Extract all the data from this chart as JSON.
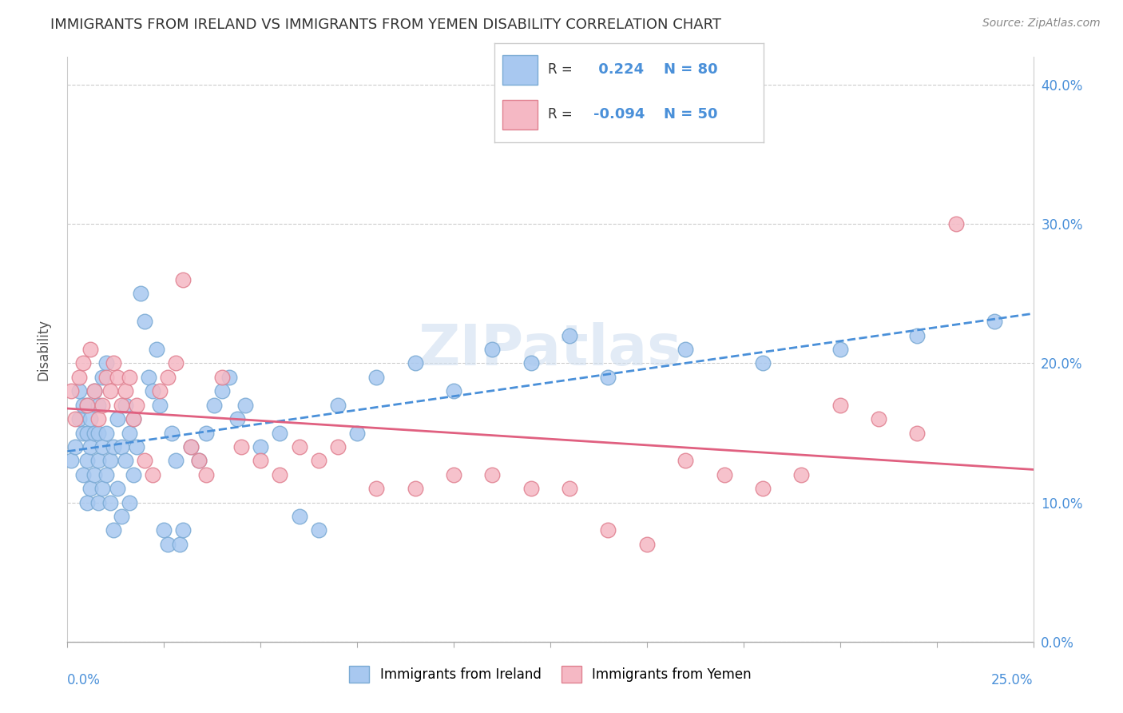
{
  "title": "IMMIGRANTS FROM IRELAND VS IMMIGRANTS FROM YEMEN DISABILITY CORRELATION CHART",
  "source": "Source: ZipAtlas.com",
  "ylabel": "Disability",
  "ytick_vals": [
    0.0,
    0.1,
    0.2,
    0.3,
    0.4
  ],
  "xlim": [
    0.0,
    0.25
  ],
  "ylim": [
    0.0,
    0.42
  ],
  "r_ireland": 0.224,
  "n_ireland": 80,
  "r_yemen": -0.094,
  "n_yemen": 50,
  "ireland_color": "#a8c8f0",
  "ireland_edge": "#7aaad4",
  "ireland_line_color": "#4a90d9",
  "yemen_color": "#f5b8c4",
  "yemen_edge": "#e08090",
  "yemen_line_color": "#e06080",
  "watermark": "ZIPatlas",
  "watermark_color": "#d0dff0",
  "ireland_scatter_x": [
    0.001,
    0.002,
    0.003,
    0.003,
    0.004,
    0.004,
    0.004,
    0.005,
    0.005,
    0.005,
    0.005,
    0.006,
    0.006,
    0.006,
    0.007,
    0.007,
    0.007,
    0.008,
    0.008,
    0.008,
    0.008,
    0.009,
    0.009,
    0.009,
    0.01,
    0.01,
    0.01,
    0.011,
    0.011,
    0.012,
    0.012,
    0.013,
    0.013,
    0.014,
    0.014,
    0.015,
    0.015,
    0.016,
    0.016,
    0.017,
    0.017,
    0.018,
    0.019,
    0.02,
    0.021,
    0.022,
    0.023,
    0.024,
    0.025,
    0.026,
    0.027,
    0.028,
    0.029,
    0.03,
    0.032,
    0.034,
    0.036,
    0.038,
    0.04,
    0.042,
    0.044,
    0.046,
    0.05,
    0.055,
    0.06,
    0.065,
    0.07,
    0.075,
    0.08,
    0.09,
    0.1,
    0.11,
    0.12,
    0.13,
    0.14,
    0.16,
    0.18,
    0.2,
    0.22,
    0.24
  ],
  "ireland_scatter_y": [
    0.13,
    0.14,
    0.16,
    0.18,
    0.12,
    0.15,
    0.17,
    0.1,
    0.13,
    0.15,
    0.17,
    0.11,
    0.14,
    0.16,
    0.12,
    0.15,
    0.18,
    0.1,
    0.13,
    0.15,
    0.17,
    0.11,
    0.14,
    0.19,
    0.12,
    0.15,
    0.2,
    0.1,
    0.13,
    0.08,
    0.14,
    0.11,
    0.16,
    0.09,
    0.14,
    0.13,
    0.17,
    0.1,
    0.15,
    0.12,
    0.16,
    0.14,
    0.25,
    0.23,
    0.19,
    0.18,
    0.21,
    0.17,
    0.08,
    0.07,
    0.15,
    0.13,
    0.07,
    0.08,
    0.14,
    0.13,
    0.15,
    0.17,
    0.18,
    0.19,
    0.16,
    0.17,
    0.14,
    0.15,
    0.09,
    0.08,
    0.17,
    0.15,
    0.19,
    0.2,
    0.18,
    0.21,
    0.2,
    0.22,
    0.19,
    0.21,
    0.2,
    0.21,
    0.22,
    0.23
  ],
  "yemen_scatter_x": [
    0.001,
    0.002,
    0.003,
    0.004,
    0.005,
    0.006,
    0.007,
    0.008,
    0.009,
    0.01,
    0.011,
    0.012,
    0.013,
    0.014,
    0.015,
    0.016,
    0.017,
    0.018,
    0.02,
    0.022,
    0.024,
    0.026,
    0.028,
    0.03,
    0.032,
    0.034,
    0.036,
    0.04,
    0.045,
    0.05,
    0.055,
    0.06,
    0.065,
    0.07,
    0.08,
    0.09,
    0.1,
    0.11,
    0.12,
    0.13,
    0.14,
    0.15,
    0.16,
    0.17,
    0.18,
    0.19,
    0.2,
    0.21,
    0.22,
    0.23
  ],
  "yemen_scatter_y": [
    0.18,
    0.16,
    0.19,
    0.2,
    0.17,
    0.21,
    0.18,
    0.16,
    0.17,
    0.19,
    0.18,
    0.2,
    0.19,
    0.17,
    0.18,
    0.19,
    0.16,
    0.17,
    0.13,
    0.12,
    0.18,
    0.19,
    0.2,
    0.26,
    0.14,
    0.13,
    0.12,
    0.19,
    0.14,
    0.13,
    0.12,
    0.14,
    0.13,
    0.14,
    0.11,
    0.11,
    0.12,
    0.12,
    0.11,
    0.11,
    0.08,
    0.07,
    0.13,
    0.12,
    0.11,
    0.12,
    0.17,
    0.16,
    0.15,
    0.3
  ]
}
